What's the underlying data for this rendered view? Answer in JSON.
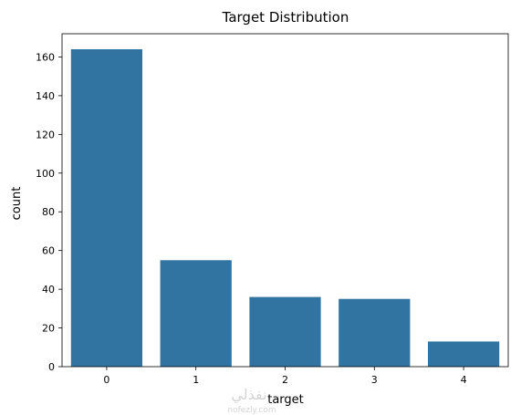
{
  "chart_data": {
    "type": "bar",
    "title": "Target Distribution",
    "xlabel": "target",
    "ylabel": "count",
    "categories": [
      "0",
      "1",
      "2",
      "3",
      "4"
    ],
    "values": [
      164,
      55,
      36,
      35,
      13
    ],
    "ylim": [
      0,
      172
    ],
    "yticks": [
      0,
      20,
      40,
      60,
      80,
      100,
      120,
      140,
      160
    ],
    "grid": false,
    "legend": "none",
    "bar_color": "#3274a1"
  },
  "watermark": {
    "line1": "نفذلي",
    "line2": "nofezly.com"
  }
}
